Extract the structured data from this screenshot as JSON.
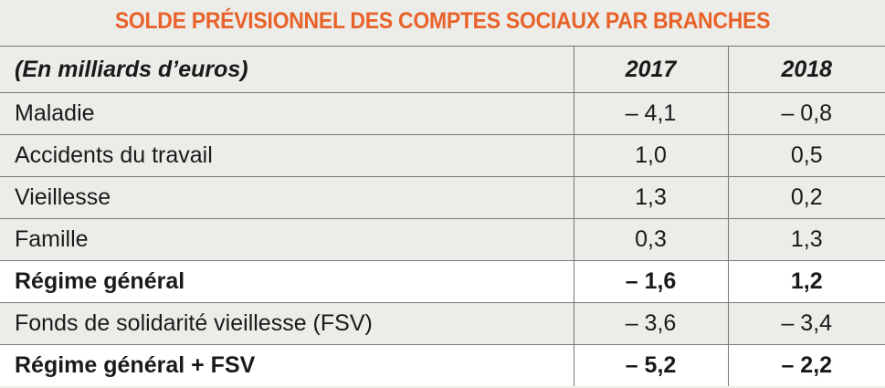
{
  "header": {
    "title": "SOLDE PRÉVISIONNEL DES COMPTES SOCIAUX PAR BRANCHES"
  },
  "table": {
    "columns": [
      "(En milliards d’euros)",
      "2017",
      "2018"
    ],
    "rows": [
      [
        "Maladie",
        "– 4,1",
        "– 0,8"
      ],
      [
        "Accidents du travail",
        "1,0",
        "0,5"
      ],
      [
        "Vieillesse",
        "1,3",
        "0,2"
      ],
      [
        "Famille",
        "0,3",
        "1,3"
      ],
      [
        "Régime général",
        "– 1,6",
        "1,2"
      ],
      [
        "Fonds de solidarité vieillesse (FSV)",
        "– 3,6",
        "– 3,4"
      ],
      [
        "Régime général + FSV",
        "– 5,2",
        "– 2,2"
      ]
    ]
  }
}
